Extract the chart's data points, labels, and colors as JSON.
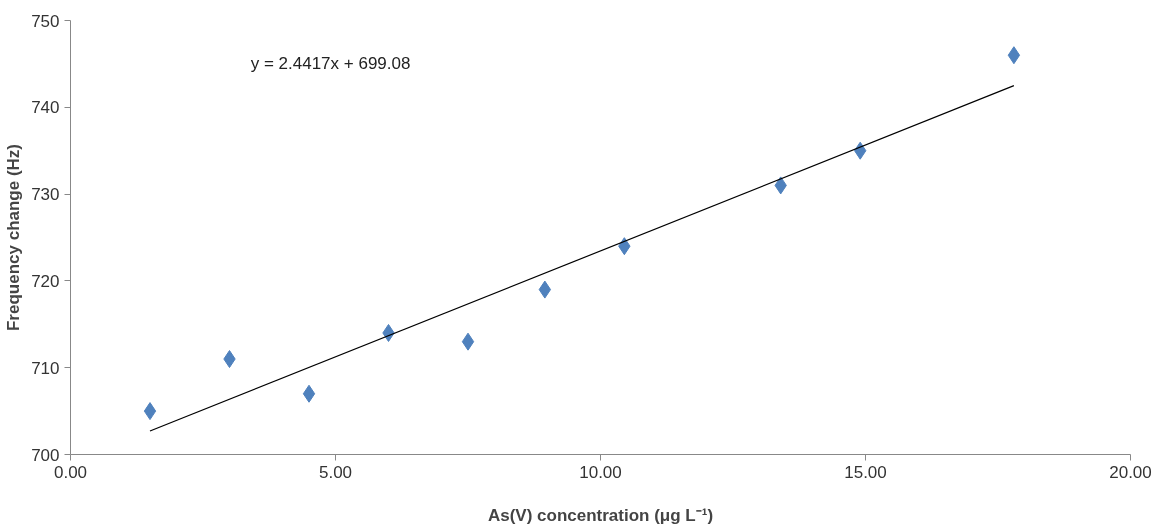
{
  "chart_data": {
    "type": "scatter",
    "xlabel": "As(V) concentration (μg L⁻¹)",
    "ylabel": "Frequency change (Hz)",
    "annotations": [
      "y = 2.4417x + 699.08"
    ],
    "xlim": [
      0,
      20
    ],
    "ylim": [
      700,
      750
    ],
    "xticks": [
      {
        "value": 0,
        "label": "0.00"
      },
      {
        "value": 5,
        "label": "5.00"
      },
      {
        "value": 10,
        "label": "10.00"
      },
      {
        "value": 15,
        "label": "15.00"
      },
      {
        "value": 20,
        "label": "20.00"
      }
    ],
    "yticks": [
      700,
      710,
      720,
      730,
      740,
      750
    ],
    "grid": false,
    "marker": "diamond",
    "series": [
      {
        "color": "#4f81bd",
        "x": [
          1.5,
          3.0,
          4.5,
          6.0,
          7.5,
          8.95,
          10.45,
          13.4,
          14.9,
          17.8
        ],
        "values": [
          705,
          711,
          707,
          714,
          713,
          719,
          724,
          731,
          735,
          746
        ]
      },
      {
        "type": "line",
        "color": "#000000",
        "line_style": "solid",
        "marker": "none",
        "x": [
          1.5,
          17.8
        ],
        "values": [
          702.7,
          742.5
        ]
      }
    ]
  }
}
